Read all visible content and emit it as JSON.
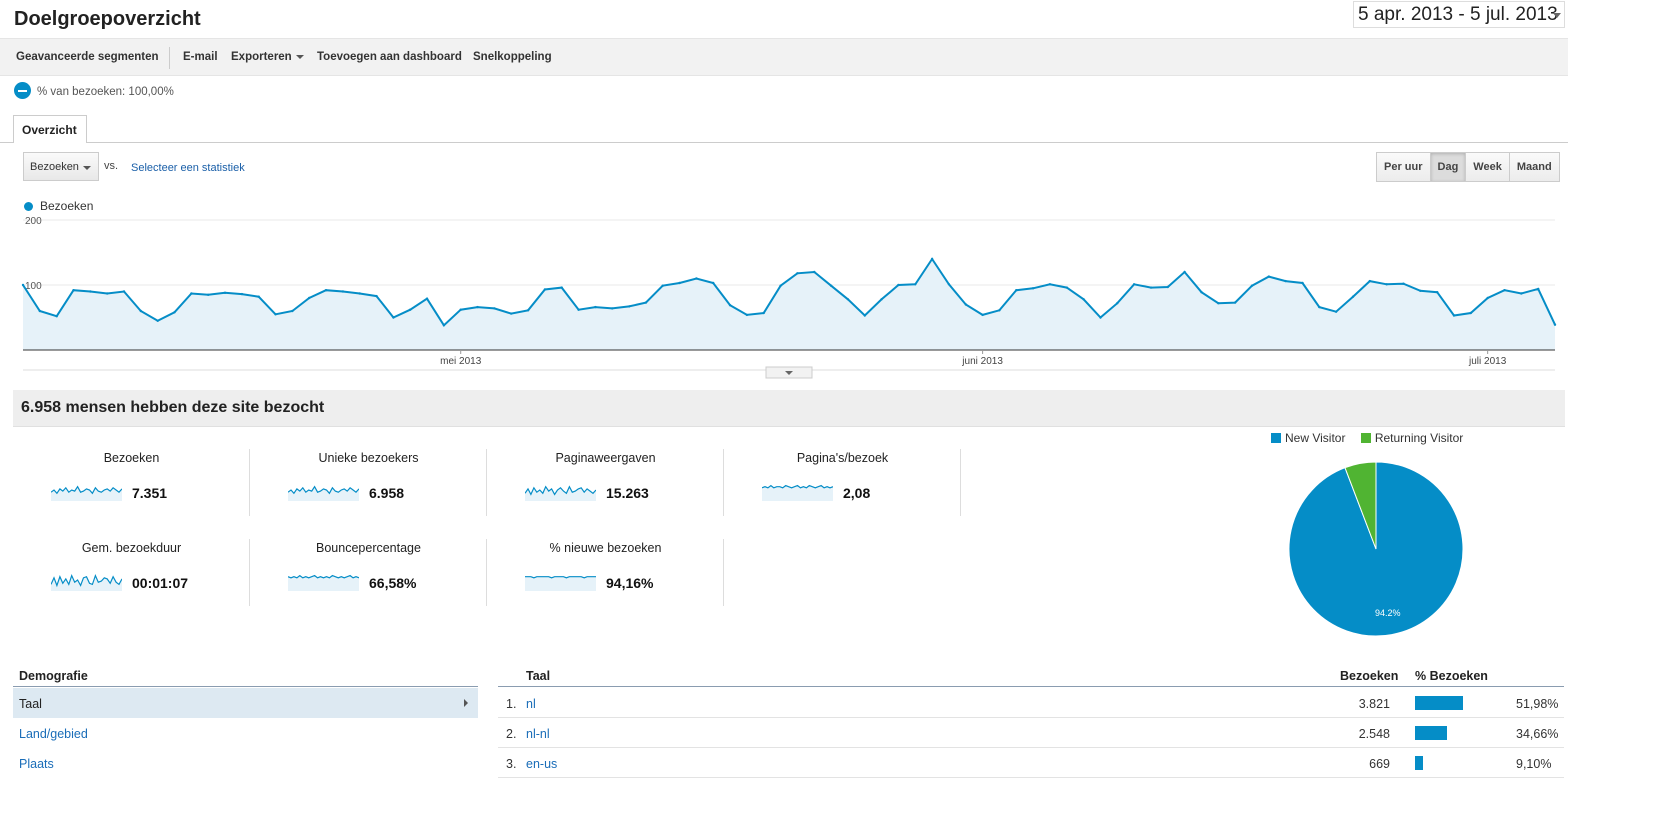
{
  "header": {
    "title": "Doelgroepoverzicht",
    "date_range": "5 apr. 2013 - 5 jul. 2013"
  },
  "toolbar": {
    "advanced_segments": "Geavanceerde segmenten",
    "email": "E-mail",
    "export": "Exporteren",
    "add_to_dashboard": "Toevoegen aan dashboard",
    "shortcut": "Snelkoppeling"
  },
  "segment": {
    "label": "% van bezoeken: 100,00%"
  },
  "tabs": [
    {
      "label": "Overzicht",
      "active": true
    }
  ],
  "chart_controls": {
    "metric": "Bezoeken",
    "vs_label": "vs.",
    "select_metric": "Selecteer een statistiek",
    "granularity": [
      {
        "label": "Per uur",
        "active": false
      },
      {
        "label": "Dag",
        "active": true
      },
      {
        "label": "Week",
        "active": false
      },
      {
        "label": "Maand",
        "active": false
      }
    ]
  },
  "chart_data": [
    {
      "type": "area",
      "series": [
        {
          "name": "Bezoeken",
          "values": [
            100,
            60,
            52,
            92,
            90,
            87,
            90,
            60,
            45,
            58,
            87,
            85,
            88,
            86,
            82,
            55,
            60,
            80,
            92,
            90,
            87,
            83,
            50,
            62,
            79,
            38,
            62,
            66,
            64,
            56,
            61,
            93,
            96,
            62,
            66,
            64,
            67,
            73,
            99,
            103,
            110,
            103,
            69,
            54,
            57,
            99,
            118,
            120,
            99,
            78,
            53,
            78,
            100,
            101,
            140,
            101,
            70,
            54,
            61,
            92,
            95,
            101,
            96,
            78,
            50,
            72,
            101,
            96,
            97,
            120,
            89,
            72,
            73,
            99,
            113,
            106,
            103,
            66,
            59,
            82,
            106,
            101,
            102,
            91,
            89,
            53,
            57,
            80,
            92,
            87,
            94,
            39
          ],
          "color": "#058dc7"
        }
      ],
      "x_start": "2013-04-05",
      "x_end": "2013-07-05",
      "x_tick_labels": [
        "mei 2013",
        "juni 2013",
        "juli 2013"
      ],
      "y_tick_labels": [
        "100",
        "200"
      ],
      "ylim": [
        0,
        200
      ],
      "legend": "top-left",
      "grid": true
    },
    {
      "type": "pie",
      "labels": [
        "New Visitor",
        "Returning Visitor"
      ],
      "values": [
        94.2,
        5.8
      ],
      "colors": [
        "#058dc7",
        "#50b432"
      ],
      "slice_labels": [
        "94.2%",
        ""
      ],
      "legend": "top"
    }
  ],
  "summary": {
    "title": "6.958 mensen hebben deze site bezocht"
  },
  "metrics": [
    {
      "label": "Bezoeken",
      "value": "7.351",
      "spark": [
        8,
        10,
        7,
        11,
        9,
        12,
        8,
        10,
        9,
        13,
        8,
        9,
        11,
        10,
        7,
        12,
        9,
        8,
        10,
        11,
        9,
        12,
        10,
        8,
        11
      ]
    },
    {
      "label": "Unieke bezoekers",
      "value": "6.958",
      "spark": [
        8,
        10,
        7,
        11,
        9,
        12,
        8,
        10,
        9,
        13,
        8,
        9,
        11,
        10,
        7,
        12,
        9,
        8,
        10,
        11,
        9,
        12,
        10,
        8,
        11
      ]
    },
    {
      "label": "Paginaweergaven",
      "value": "15.263",
      "spark": [
        7,
        11,
        6,
        12,
        8,
        10,
        7,
        13,
        9,
        11,
        6,
        10,
        12,
        9,
        7,
        13,
        8,
        9,
        11,
        12,
        8,
        11,
        9,
        7,
        10
      ]
    },
    {
      "label": "Pagina's/bezoek",
      "value": "2,08",
      "spark": [
        12,
        13,
        12,
        14,
        12,
        13,
        13,
        12,
        14,
        13,
        12,
        13,
        14,
        12,
        13,
        12,
        14,
        13,
        12,
        13,
        14,
        12,
        13,
        12,
        13
      ]
    },
    {
      "label": "Gem. bezoekduur",
      "value": "00:01:07",
      "spark": [
        6,
        12,
        5,
        13,
        7,
        11,
        6,
        14,
        8,
        10,
        5,
        12,
        13,
        7,
        6,
        14,
        8,
        9,
        12,
        11,
        7,
        13,
        8,
        6,
        11
      ]
    },
    {
      "label": "Bouncepercentage",
      "value": "66,58%",
      "spark": [
        13,
        12,
        13,
        12,
        14,
        12,
        13,
        12,
        13,
        14,
        12,
        13,
        12,
        13,
        12,
        14,
        13,
        12,
        13,
        12,
        13,
        14,
        12,
        13,
        12
      ]
    },
    {
      "label": "% nieuwe bezoeken",
      "value": "94,16%",
      "spark": [
        13,
        13,
        13,
        12,
        13,
        13,
        13,
        13,
        13,
        12,
        13,
        13,
        13,
        13,
        12,
        13,
        13,
        13,
        13,
        13,
        12,
        13,
        13,
        13,
        13
      ]
    }
  ],
  "demografie": {
    "header": "Demografie",
    "items": [
      {
        "label": "Taal",
        "selected": true
      },
      {
        "label": "Land/gebied",
        "selected": false
      },
      {
        "label": "Plaats",
        "selected": false
      }
    ]
  },
  "taal_table": {
    "headers": {
      "taal": "Taal",
      "bezoeken": "Bezoeken",
      "pct": "% Bezoeken"
    },
    "rows": [
      {
        "rank": "1.",
        "lang": "nl",
        "visits": "3.821",
        "pct": "51,98%",
        "share": 0.5198
      },
      {
        "rank": "2.",
        "lang": "nl-nl",
        "visits": "2.548",
        "pct": "34,66%",
        "share": 0.3466
      },
      {
        "rank": "3.",
        "lang": "en-us",
        "visits": "669",
        "pct": "9,10%",
        "share": 0.091
      }
    ]
  }
}
